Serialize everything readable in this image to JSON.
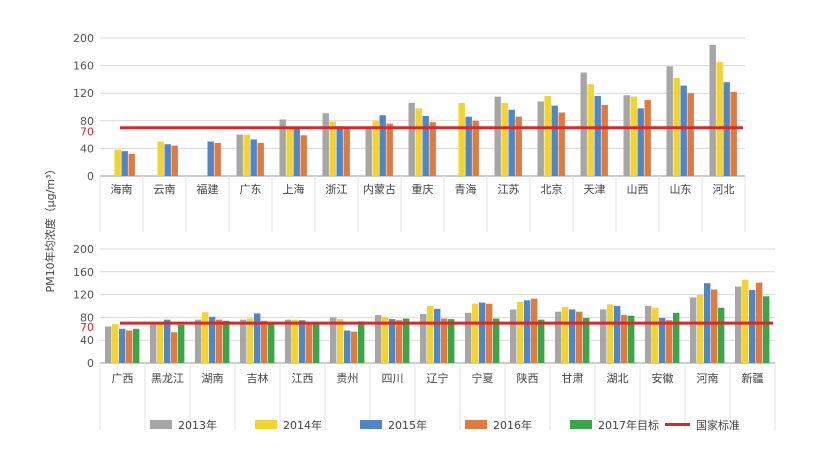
{
  "ylabel": "PM10年均浓度（μg/m³）",
  "reference": {
    "value": 70,
    "label": "70",
    "color": "#d42a2a",
    "name": "国家标准"
  },
  "series_meta": [
    {
      "name": "2013年",
      "color": "#a6a6a6"
    },
    {
      "name": "2014年",
      "color": "#f2d32f"
    },
    {
      "name": "2015年",
      "color": "#4f86c6"
    },
    {
      "name": "2016年",
      "color": "#e07a3f"
    },
    {
      "name": "2017年目标",
      "color": "#3aa64a"
    }
  ],
  "chart_data": [
    {
      "type": "bar",
      "ylim": [
        0,
        200
      ],
      "yticks": [
        0,
        40,
        80,
        120,
        160,
        200
      ],
      "categories": [
        "海南",
        "云南",
        "福建",
        "广东",
        "上海",
        "浙江",
        "内蒙古",
        "重庆",
        "青海",
        "江苏",
        "北京",
        "天津",
        "山西",
        "山东",
        "河北"
      ],
      "series": [
        {
          "name": "2013年",
          "values": [
            null,
            null,
            null,
            60,
            82,
            91,
            70,
            106,
            null,
            115,
            108,
            150,
            117,
            159,
            190
          ]
        },
        {
          "name": "2014年",
          "values": [
            38,
            50,
            null,
            60,
            71,
            79,
            80,
            98,
            106,
            106,
            116,
            133,
            115,
            142,
            165
          ]
        },
        {
          "name": "2015年",
          "values": [
            36,
            46,
            50,
            53,
            70,
            72,
            88,
            87,
            86,
            96,
            102,
            116,
            98,
            131,
            136
          ]
        },
        {
          "name": "2016年",
          "values": [
            32,
            44,
            48,
            48,
            59,
            70,
            76,
            78,
            80,
            86,
            92,
            103,
            110,
            120,
            122
          ]
        }
      ]
    },
    {
      "type": "bar",
      "ylim": [
        0,
        200
      ],
      "yticks": [
        0,
        40,
        80,
        120,
        160,
        200
      ],
      "categories": [
        "广西",
        "黑龙江",
        "湖南",
        "吉林",
        "江西",
        "贵州",
        "四川",
        "辽宁",
        "宁夏",
        "陕西",
        "甘肃",
        "湖北",
        "安徽",
        "河南",
        "新疆"
      ],
      "series": [
        {
          "name": "2013年",
          "values": [
            64,
            70,
            76,
            76,
            76,
            80,
            84,
            86,
            88,
            94,
            90,
            94,
            100,
            115,
            134
          ]
        },
        {
          "name": "2014年",
          "values": [
            68,
            71,
            89,
            78,
            76,
            77,
            81,
            100,
            104,
            107,
            98,
            103,
            97,
            120,
            146
          ]
        },
        {
          "name": "2015年",
          "values": [
            60,
            76,
            81,
            87,
            75,
            57,
            77,
            95,
            106,
            110,
            94,
            100,
            79,
            140,
            128
          ]
        },
        {
          "name": "2016年",
          "values": [
            57,
            54,
            76,
            74,
            71,
            55,
            75,
            78,
            104,
            113,
            90,
            84,
            75,
            129,
            141
          ]
        },
        {
          "name": "2017年目标",
          "values": [
            60,
            67,
            74,
            69,
            71,
            73,
            78,
            77,
            78,
            76,
            79,
            83,
            88,
            97,
            117
          ]
        }
      ]
    }
  ]
}
